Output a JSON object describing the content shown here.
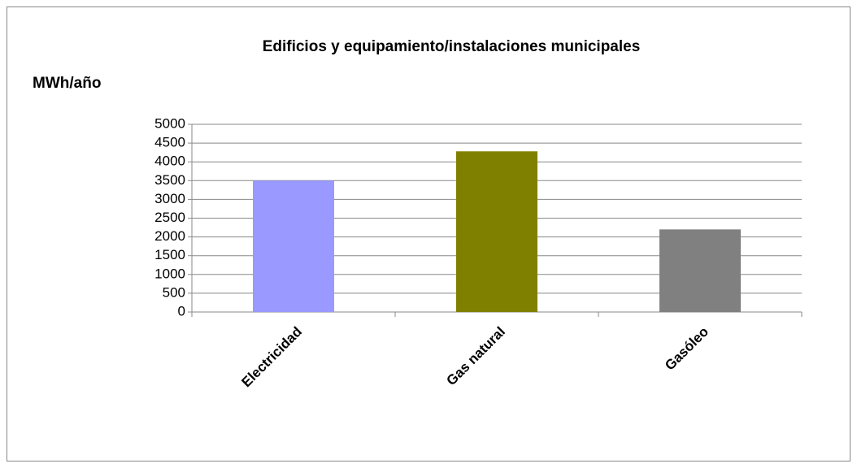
{
  "chart_data": {
    "type": "bar",
    "title": "Edificios y equipamiento/instalaciones municipales",
    "y_label": "MWh/año",
    "categories": [
      "Electricidad",
      "Gas natural",
      "Gasóleo"
    ],
    "values": [
      3500,
      4280,
      2200
    ],
    "colors": [
      "#9999ff",
      "#808000",
      "#808080"
    ],
    "ylim": [
      0,
      5000
    ],
    "yticks": [
      0,
      500,
      1000,
      1500,
      2000,
      2500,
      3000,
      3500,
      4000,
      4500,
      5000
    ],
    "grid": true
  }
}
